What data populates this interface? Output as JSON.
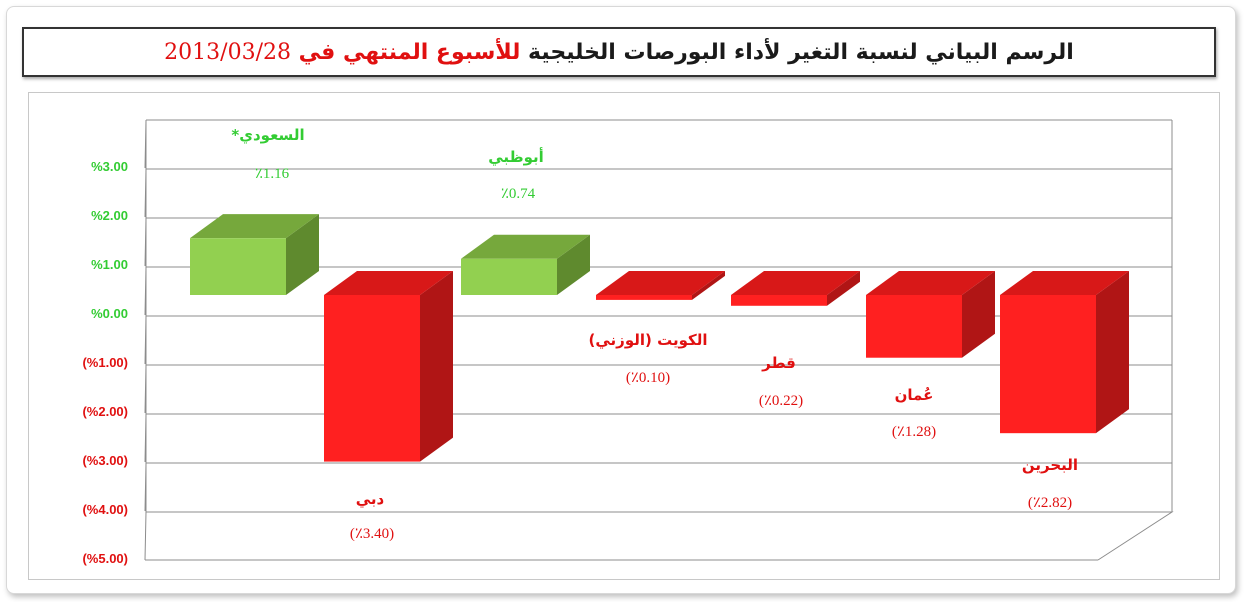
{
  "title": {
    "part1": "الرسم البياني لنسبة التغير لأداء البورصات الخليجية",
    "part2": "للأسبوع المنتهي في",
    "date": "2013/03/28",
    "color_main": "#1a1a1a",
    "color_highlight": "#e01010"
  },
  "colors": {
    "positive_front": "#92d050",
    "positive_top": "#76a83c",
    "positive_side": "#5f8a2e",
    "negative_front": "#ff2020",
    "negative_top": "#d81818",
    "negative_side": "#b01515",
    "positive_label": "#33cc33",
    "negative_label": "#e01010"
  },
  "chart_data": {
    "type": "bar",
    "categories": [
      "السعودي*",
      "دبي",
      "أبوظبي",
      "الكويت (الوزني)",
      "قطر",
      "عُمان",
      "البحرين"
    ],
    "values": [
      1.16,
      -3.4,
      0.74,
      -0.1,
      -0.22,
      -1.28,
      -2.82
    ],
    "value_labels": [
      "٪1.16",
      "(٪3.40)",
      "٪0.74",
      "(٪0.10)",
      "(٪0.22)",
      "(٪1.28)",
      "(٪2.82)"
    ],
    "yticks": [
      3,
      2,
      1,
      0,
      -1,
      -2,
      -3,
      -4,
      -5
    ],
    "ytick_labels": [
      "%3.00",
      "%2.00",
      "%1.00",
      "%0.00",
      "(%1.00)",
      "(%2.00)",
      "(%3.00)",
      "(%4.00)",
      "(%5.00)"
    ],
    "ylim": [
      -5,
      3
    ],
    "grid": true,
    "style": "3d"
  }
}
